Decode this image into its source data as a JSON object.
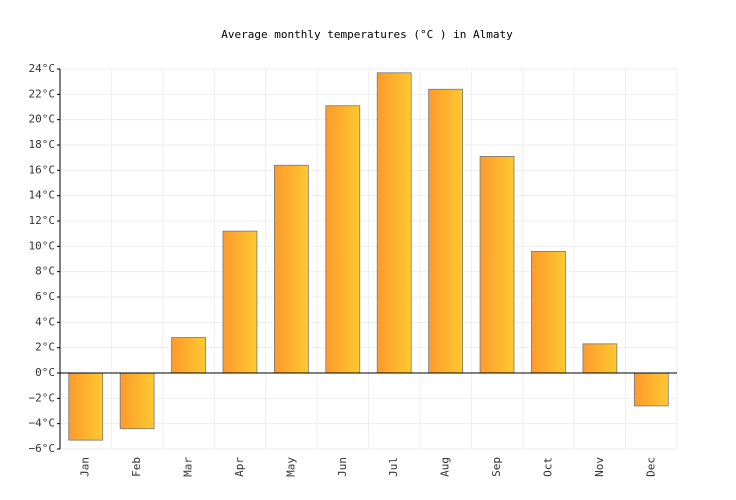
{
  "chart_data": {
    "type": "bar",
    "title": "Average monthly temperatures (°C ) in Almaty",
    "categories": [
      "Jan",
      "Feb",
      "Mar",
      "Apr",
      "May",
      "Jun",
      "Jul",
      "Aug",
      "Sep",
      "Oct",
      "Nov",
      "Dec"
    ],
    "values": [
      -5.3,
      -4.4,
      2.8,
      11.2,
      16.4,
      21.1,
      23.7,
      22.4,
      17.1,
      9.6,
      2.3,
      -2.6
    ],
    "gradient": [
      "#fe9a2e",
      "#fec92f"
    ],
    "ylim": [
      -6,
      24
    ],
    "yticks": [
      {
        "value": -6,
        "label": "−6°C"
      },
      {
        "value": -4,
        "label": "−4°C"
      },
      {
        "value": -2,
        "label": "−2°C"
      },
      {
        "value": 0,
        "label": "0°C"
      },
      {
        "value": 2,
        "label": "2°C"
      },
      {
        "value": 4,
        "label": "4°C"
      },
      {
        "value": 6,
        "label": "6°C"
      },
      {
        "value": 8,
        "label": "8°C"
      },
      {
        "value": 10,
        "label": "10°C"
      },
      {
        "value": 12,
        "label": "12°C"
      },
      {
        "value": 14,
        "label": "14°C"
      },
      {
        "value": 16,
        "label": "16°C"
      },
      {
        "value": 18,
        "label": "18°C"
      },
      {
        "value": 20,
        "label": "20°C"
      },
      {
        "value": 22,
        "label": "22°C"
      },
      {
        "value": 24,
        "label": "24°C"
      }
    ],
    "grid": true
  }
}
